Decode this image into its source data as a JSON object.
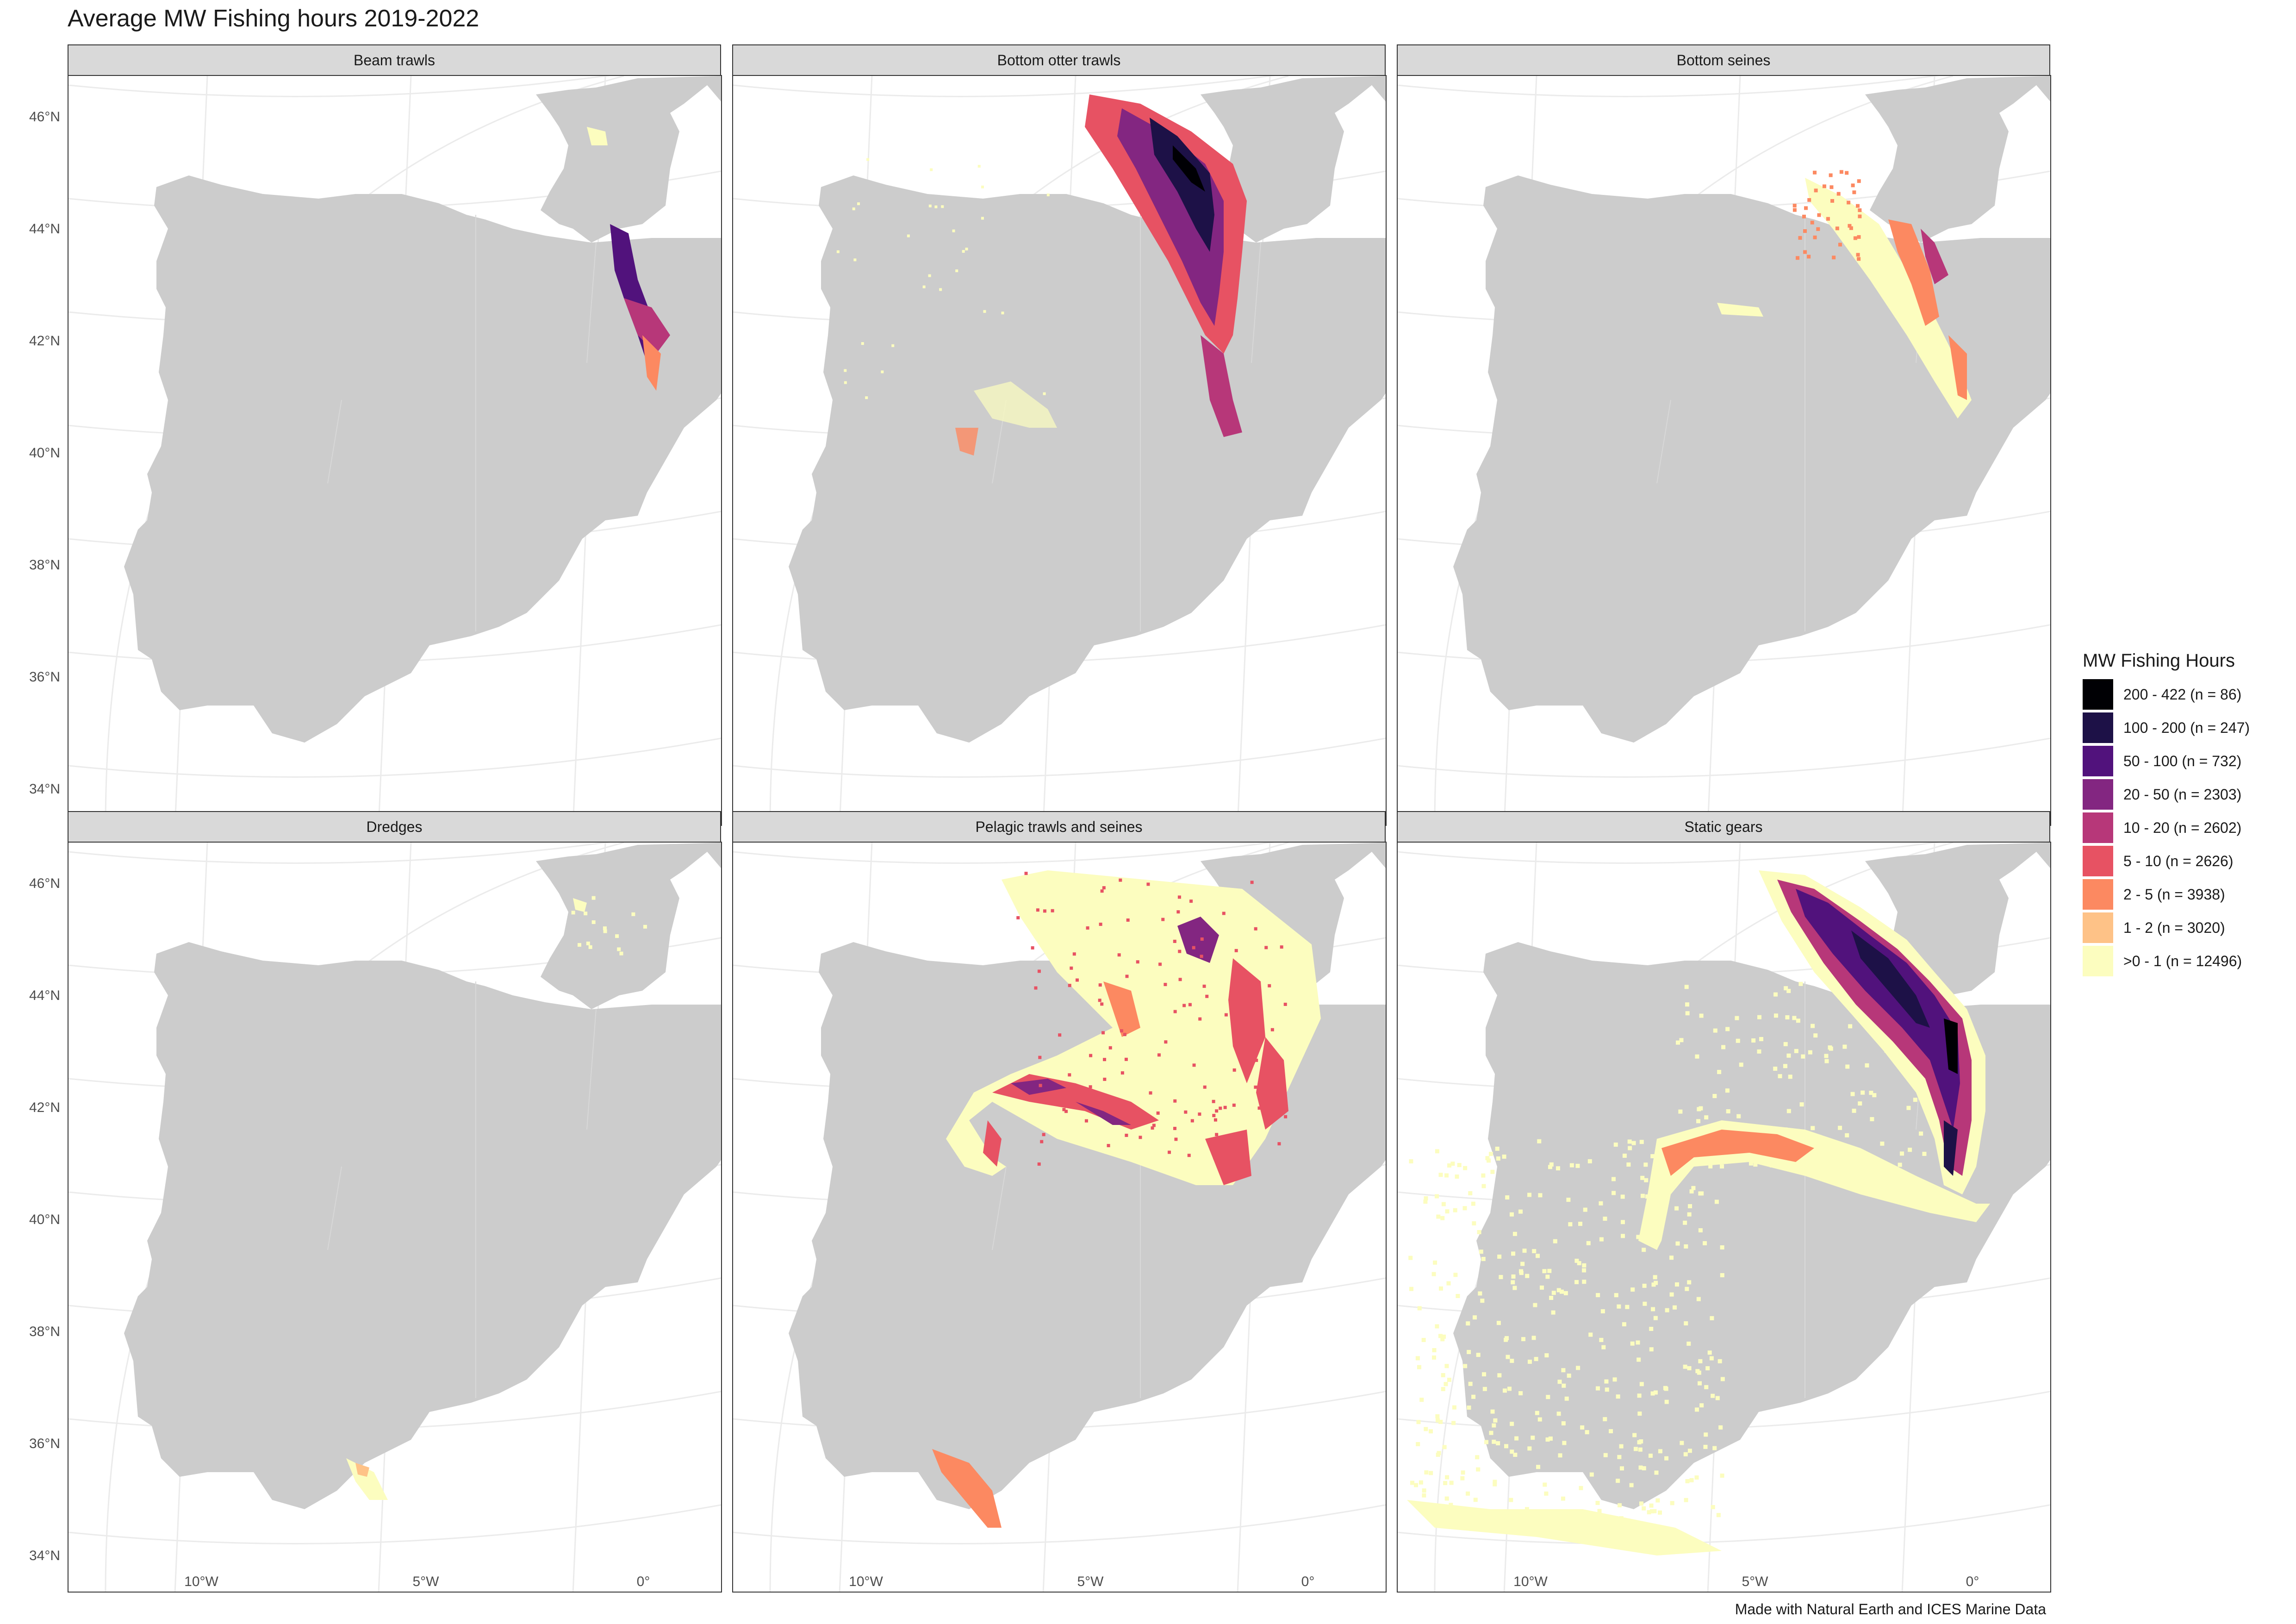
{
  "title": "Average MW Fishing hours 2019-2022",
  "caption": "Made with Natural Earth and ICES Marine Data",
  "panels": [
    {
      "label": "Beam trawls"
    },
    {
      "label": "Bottom otter trawls"
    },
    {
      "label": "Bottom seines"
    },
    {
      "label": "Dredges"
    },
    {
      "label": "Pelagic trawls and seines"
    },
    {
      "label": "Static gears"
    }
  ],
  "axes": {
    "y_ticks": [
      "46°N",
      "44°N",
      "42°N",
      "40°N",
      "38°N",
      "36°N",
      "34°N"
    ],
    "x_ticks": [
      "10°W",
      "5°W",
      "0°"
    ]
  },
  "legend": {
    "title": "MW Fishing Hours",
    "items": [
      {
        "label": "200 - 422 (n = 86)",
        "color": "#000004"
      },
      {
        "label": "100 - 200 (n = 247)",
        "color": "#1d1147"
      },
      {
        "label": "50 - 100 (n = 732)",
        "color": "#51127c"
      },
      {
        "label": "20 - 50 (n = 2303)",
        "color": "#832681"
      },
      {
        "label": "10 - 20 (n = 2602)",
        "color": "#b73779"
      },
      {
        "label": "5 - 10 (n = 2626)",
        "color": "#e75263"
      },
      {
        "label": "2 - 5 (n = 3938)",
        "color": "#fc8961"
      },
      {
        "label": "1 - 2 (n = 3020)",
        "color": "#fec287"
      },
      {
        "label": ">0 - 1 (n = 12496)",
        "color": "#fcfdbf"
      }
    ]
  },
  "colors": {
    "land": "#cccccc",
    "graticule": "#ebebeb",
    "strip": "#d9d9d9"
  }
}
